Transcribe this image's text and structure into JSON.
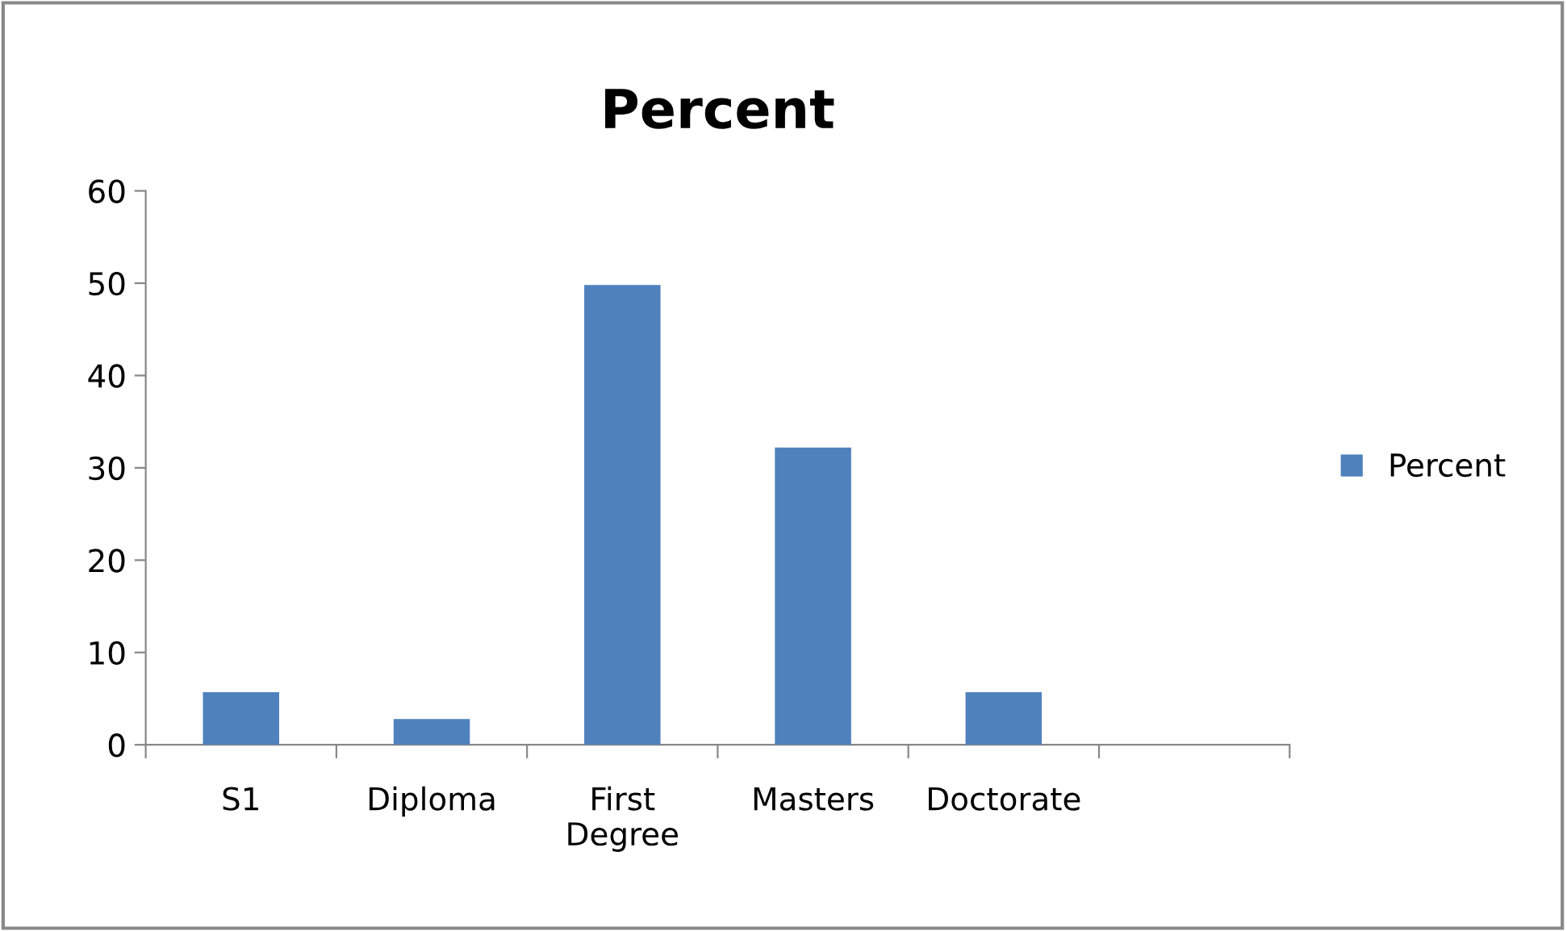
{
  "chart_data": {
    "type": "bar",
    "title": "Percent",
    "categories": [
      "S1",
      "Diploma",
      "First\nDegree",
      "Masters",
      "Doctorate",
      null
    ],
    "series": [
      {
        "name": "Percent",
        "color": "#4f81bd",
        "values": [
          5.7,
          2.8,
          49.8,
          32.2,
          5.7,
          null
        ]
      }
    ],
    "ylim": [
      0,
      60
    ],
    "yticks": [
      0,
      10,
      20,
      30,
      40,
      50,
      60
    ],
    "grid": false,
    "legend": "right"
  }
}
